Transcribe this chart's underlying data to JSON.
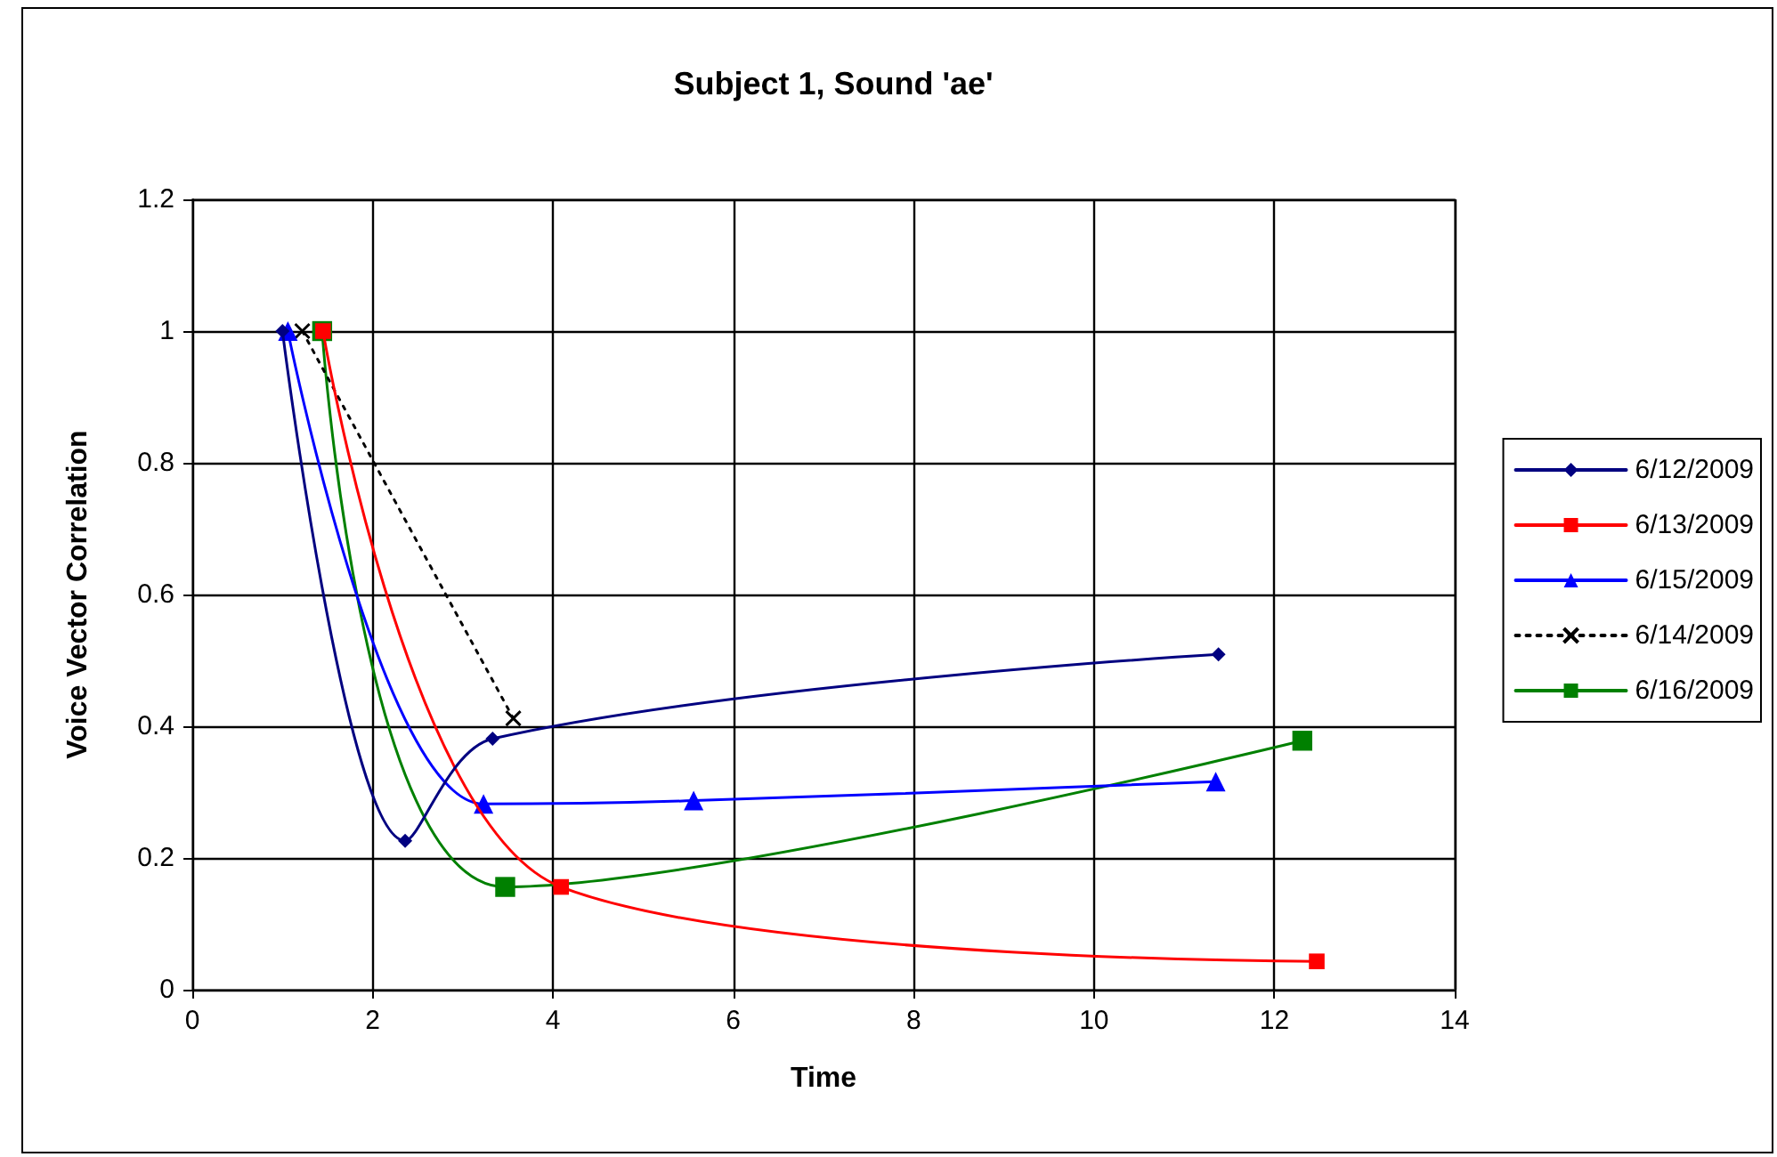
{
  "chart_data": {
    "type": "line",
    "title": "Subject 1, Sound 'ae'",
    "xlabel": "Time",
    "ylabel": "Voice Vector Correlation",
    "xlim": [
      0,
      14
    ],
    "xticks": [
      0,
      2,
      4,
      6,
      8,
      10,
      12,
      14
    ],
    "ylim": [
      0,
      1.2
    ],
    "yticks": [
      0,
      0.2,
      0.4,
      0.6,
      0.8,
      1,
      1.2
    ],
    "grid": true,
    "legend": "right",
    "series": [
      {
        "name": "6/12/2009",
        "color": "#000080",
        "marker": "diamond",
        "line_style": "solid",
        "x": [
          1.0,
          2.36,
          3.33,
          11.38
        ],
        "values": [
          1.0,
          0.226,
          0.381,
          0.509
        ]
      },
      {
        "name": "6/13/2009",
        "color": "#ff0000",
        "marker": "square",
        "line_style": "solid",
        "x": [
          1.45,
          4.09,
          12.47
        ],
        "values": [
          1.0,
          0.156,
          0.043
        ]
      },
      {
        "name": "6/15/2009",
        "color": "#0000ff",
        "marker": "triangle",
        "line_style": "solid",
        "x": [
          1.06,
          3.23,
          5.56,
          11.35
        ],
        "values": [
          1.0,
          0.282,
          0.287,
          0.316
        ]
      },
      {
        "name": "6/14/2009",
        "color": "#000000",
        "marker": "cross",
        "line_style": "dotted",
        "x": [
          1.22,
          3.56
        ],
        "values": [
          1.0,
          0.412
        ]
      },
      {
        "name": "6/16/2009",
        "color": "#008000",
        "marker": "square",
        "line_style": "solid",
        "x": [
          1.44,
          3.47,
          12.31
        ],
        "values": [
          1.0,
          0.156,
          0.378
        ]
      }
    ]
  }
}
